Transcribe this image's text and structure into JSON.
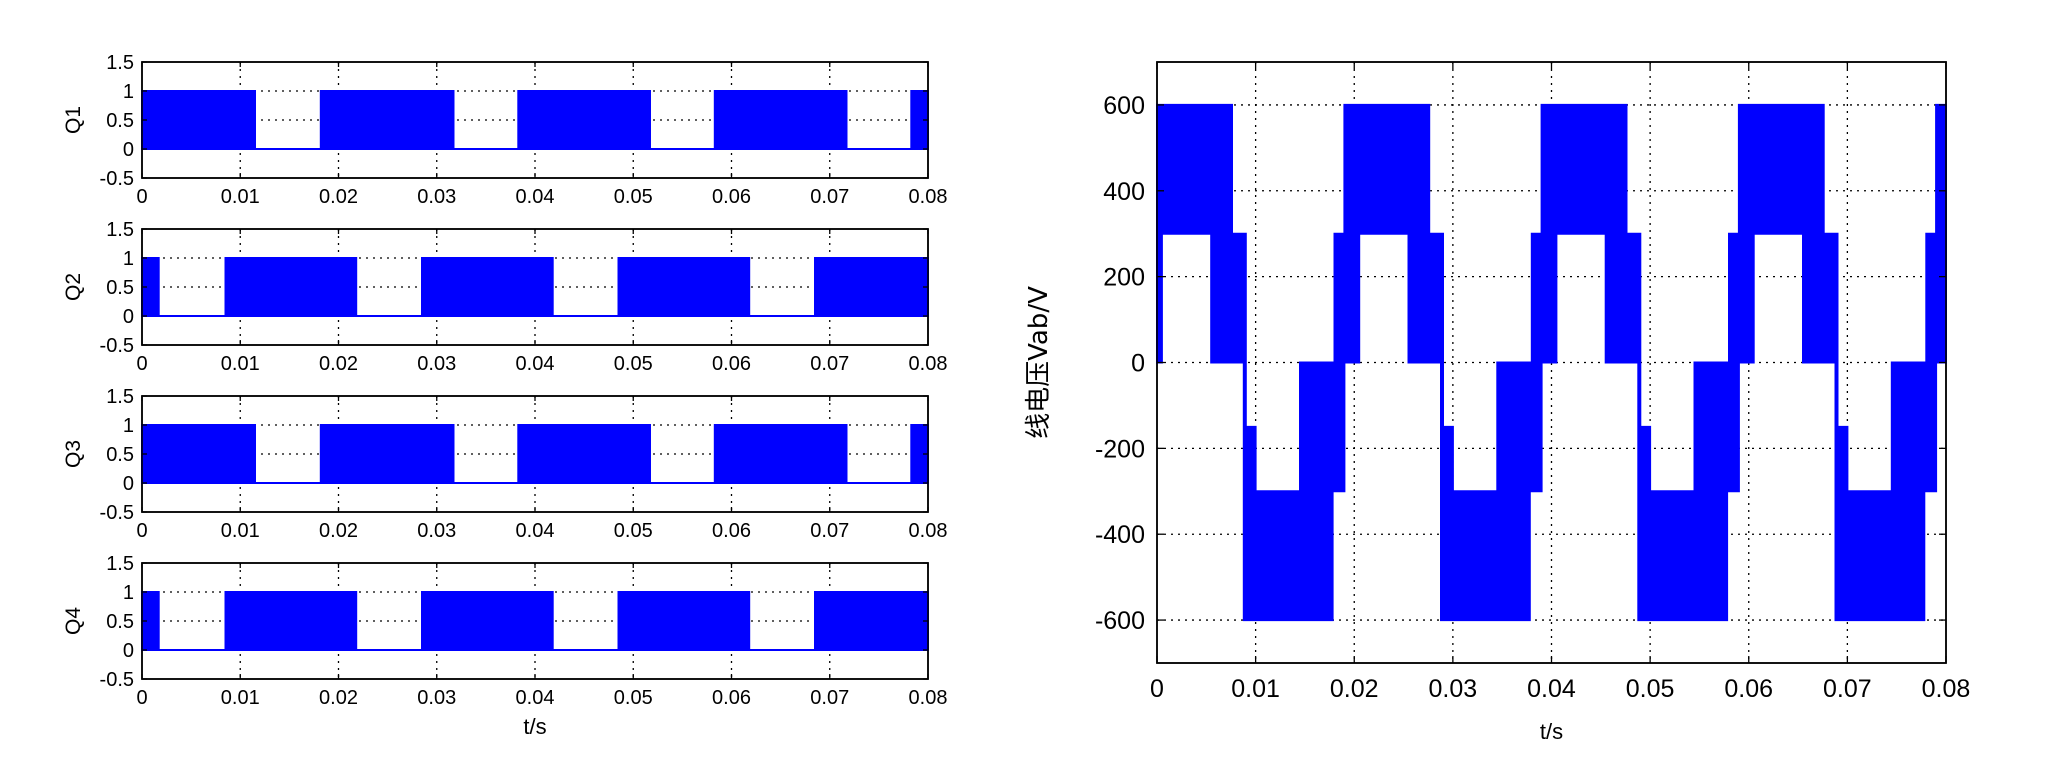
{
  "chart_data": [
    {
      "type": "area",
      "subplot": "Q1",
      "ylabel": "Q1",
      "xlabel": "",
      "xlim": [
        0,
        0.08
      ],
      "ylim": [
        -0.5,
        1.5
      ],
      "xticks": [
        "0",
        "0.01",
        "0.02",
        "0.03",
        "0.04",
        "0.05",
        "0.06",
        "0.07",
        "0.08"
      ],
      "yticks": [
        "-0.5",
        "0",
        "0.5",
        "1",
        "1.5"
      ],
      "grid": true,
      "envelope": [
        [
          0,
          1
        ],
        [
          0.0115,
          1
        ],
        [
          0.0115,
          0
        ],
        [
          0.0182,
          0
        ],
        [
          0.0182,
          1
        ],
        [
          0.0317,
          1
        ],
        [
          0.0317,
          0
        ],
        [
          0.0383,
          0
        ],
        [
          0.0383,
          1
        ],
        [
          0.0517,
          1
        ],
        [
          0.0517,
          0
        ],
        [
          0.0583,
          0
        ],
        [
          0.0583,
          1
        ],
        [
          0.0717,
          1
        ],
        [
          0.0717,
          0
        ],
        [
          0.0783,
          0
        ],
        [
          0.0783,
          1
        ],
        [
          0.08,
          1
        ]
      ]
    },
    {
      "type": "area",
      "subplot": "Q2",
      "ylabel": "Q2",
      "xlabel": "",
      "xlim": [
        0,
        0.08
      ],
      "ylim": [
        -0.5,
        1.5
      ],
      "xticks": [
        "0",
        "0.01",
        "0.02",
        "0.03",
        "0.04",
        "0.05",
        "0.06",
        "0.07",
        "0.08"
      ],
      "yticks": [
        "-0.5",
        "0",
        "0.5",
        "1",
        "1.5"
      ],
      "grid": true,
      "envelope": [
        [
          0,
          1
        ],
        [
          0.0017,
          1
        ],
        [
          0.0017,
          0
        ],
        [
          0.0085,
          0
        ],
        [
          0.0085,
          1
        ],
        [
          0.0218,
          1
        ],
        [
          0.0218,
          0
        ],
        [
          0.0285,
          0
        ],
        [
          0.0285,
          1
        ],
        [
          0.0418,
          1
        ],
        [
          0.0418,
          0
        ],
        [
          0.0485,
          0
        ],
        [
          0.0485,
          1
        ],
        [
          0.0618,
          1
        ],
        [
          0.0618,
          0
        ],
        [
          0.0685,
          0
        ],
        [
          0.0685,
          1
        ],
        [
          0.08,
          1
        ]
      ]
    },
    {
      "type": "area",
      "subplot": "Q3",
      "ylabel": "Q3",
      "xlabel": "",
      "xlim": [
        0,
        0.08
      ],
      "ylim": [
        -0.5,
        1.5
      ],
      "xticks": [
        "0",
        "0.01",
        "0.02",
        "0.03",
        "0.04",
        "0.05",
        "0.06",
        "0.07",
        "0.08"
      ],
      "yticks": [
        "-0.5",
        "0",
        "0.5",
        "1",
        "1.5"
      ],
      "grid": true,
      "envelope": [
        [
          0,
          1
        ],
        [
          0.0115,
          1
        ],
        [
          0.0115,
          0
        ],
        [
          0.0182,
          0
        ],
        [
          0.0182,
          1
        ],
        [
          0.0317,
          1
        ],
        [
          0.0317,
          0
        ],
        [
          0.0383,
          0
        ],
        [
          0.0383,
          1
        ],
        [
          0.0517,
          1
        ],
        [
          0.0517,
          0
        ],
        [
          0.0583,
          0
        ],
        [
          0.0583,
          1
        ],
        [
          0.0717,
          1
        ],
        [
          0.0717,
          0
        ],
        [
          0.0783,
          0
        ],
        [
          0.0783,
          1
        ],
        [
          0.08,
          1
        ]
      ]
    },
    {
      "type": "area",
      "subplot": "Q4",
      "ylabel": "Q4",
      "xlabel": "t/s",
      "xlim": [
        0,
        0.08
      ],
      "ylim": [
        -0.5,
        1.5
      ],
      "xticks": [
        "0",
        "0.01",
        "0.02",
        "0.03",
        "0.04",
        "0.05",
        "0.06",
        "0.07",
        "0.08"
      ],
      "yticks": [
        "-0.5",
        "0",
        "0.5",
        "1",
        "1.5"
      ],
      "grid": true,
      "envelope": [
        [
          0,
          1
        ],
        [
          0.0017,
          1
        ],
        [
          0.0017,
          0
        ],
        [
          0.0085,
          0
        ],
        [
          0.0085,
          1
        ],
        [
          0.0218,
          1
        ],
        [
          0.0218,
          0
        ],
        [
          0.0285,
          0
        ],
        [
          0.0285,
          1
        ],
        [
          0.0418,
          1
        ],
        [
          0.0418,
          0
        ],
        [
          0.0485,
          0
        ],
        [
          0.0485,
          1
        ],
        [
          0.0618,
          1
        ],
        [
          0.0618,
          0
        ],
        [
          0.0685,
          0
        ],
        [
          0.0685,
          1
        ],
        [
          0.08,
          1
        ]
      ]
    },
    {
      "type": "area",
      "subplot": "Vab",
      "ylabel": "线电压Vab/V",
      "xlabel": "t/s",
      "xlim": [
        0,
        0.08
      ],
      "ylim": [
        -700,
        700
      ],
      "xticks": [
        "0",
        "0.01",
        "0.02",
        "0.03",
        "0.04",
        "0.05",
        "0.06",
        "0.07",
        "0.08"
      ],
      "yticks": [
        "-600",
        "-400",
        "-200",
        "0",
        "200",
        "400",
        "600"
      ],
      "grid": true,
      "upper_envelope": [
        [
          0,
          0
        ],
        [
          0,
          600
        ],
        [
          0.0076,
          600
        ],
        [
          0.0076,
          300
        ],
        [
          0.009,
          300
        ],
        [
          0.009,
          -150
        ],
        [
          0.01,
          -150
        ],
        [
          0.01,
          -300
        ],
        [
          0.0145,
          -300
        ],
        [
          0.0145,
          0
        ],
        [
          0.018,
          0
        ],
        [
          0.018,
          300
        ],
        [
          0.019,
          300
        ],
        [
          0.019,
          600
        ],
        [
          0.0276,
          600
        ],
        [
          0.0276,
          300
        ],
        [
          0.029,
          300
        ],
        [
          0.029,
          -150
        ],
        [
          0.03,
          -150
        ],
        [
          0.03,
          -300
        ],
        [
          0.0345,
          -300
        ],
        [
          0.0345,
          0
        ],
        [
          0.038,
          0
        ],
        [
          0.038,
          300
        ],
        [
          0.039,
          300
        ],
        [
          0.039,
          600
        ],
        [
          0.0476,
          600
        ],
        [
          0.0476,
          300
        ],
        [
          0.049,
          300
        ],
        [
          0.049,
          -150
        ],
        [
          0.05,
          -150
        ],
        [
          0.05,
          -300
        ],
        [
          0.0545,
          -300
        ],
        [
          0.0545,
          0
        ],
        [
          0.058,
          0
        ],
        [
          0.058,
          300
        ],
        [
          0.059,
          300
        ],
        [
          0.059,
          600
        ],
        [
          0.0676,
          600
        ],
        [
          0.0676,
          300
        ],
        [
          0.069,
          300
        ],
        [
          0.069,
          -150
        ],
        [
          0.07,
          -150
        ],
        [
          0.07,
          -300
        ],
        [
          0.0745,
          -300
        ],
        [
          0.0745,
          0
        ],
        [
          0.078,
          0
        ],
        [
          0.078,
          300
        ],
        [
          0.079,
          300
        ],
        [
          0.079,
          600
        ],
        [
          0.08,
          600
        ]
      ],
      "lower_envelope": [
        [
          0,
          0
        ],
        [
          0.0005,
          0
        ],
        [
          0.0005,
          300
        ],
        [
          0.0055,
          300
        ],
        [
          0.0055,
          0
        ],
        [
          0.0088,
          0
        ],
        [
          0.0088,
          -600
        ],
        [
          0.0178,
          -600
        ],
        [
          0.0178,
          -300
        ],
        [
          0.019,
          -300
        ],
        [
          0.019,
          0
        ],
        [
          0.0205,
          0
        ],
        [
          0.0205,
          300
        ],
        [
          0.0255,
          300
        ],
        [
          0.0255,
          0
        ],
        [
          0.0288,
          0
        ],
        [
          0.0288,
          -600
        ],
        [
          0.0378,
          -600
        ],
        [
          0.0378,
          -300
        ],
        [
          0.039,
          -300
        ],
        [
          0.039,
          0
        ],
        [
          0.0405,
          0
        ],
        [
          0.0405,
          300
        ],
        [
          0.0455,
          300
        ],
        [
          0.0455,
          0
        ],
        [
          0.0488,
          0
        ],
        [
          0.0488,
          -600
        ],
        [
          0.0578,
          -600
        ],
        [
          0.0578,
          -300
        ],
        [
          0.059,
          -300
        ],
        [
          0.059,
          0
        ],
        [
          0.0605,
          0
        ],
        [
          0.0605,
          300
        ],
        [
          0.0655,
          300
        ],
        [
          0.0655,
          0
        ],
        [
          0.0688,
          0
        ],
        [
          0.0688,
          -600
        ],
        [
          0.0778,
          -600
        ],
        [
          0.0778,
          -300
        ],
        [
          0.079,
          -300
        ],
        [
          0.079,
          0
        ],
        [
          0.08,
          0
        ]
      ]
    }
  ]
}
